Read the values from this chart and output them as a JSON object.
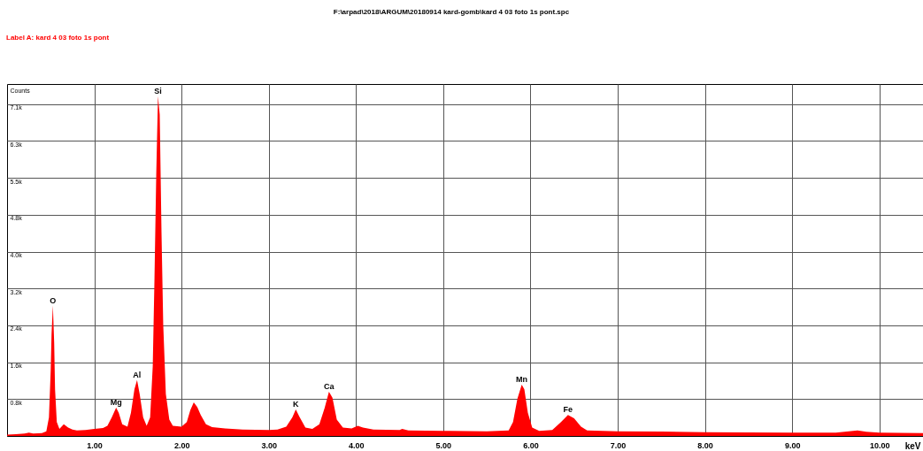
{
  "chart_data": {
    "type": "area",
    "title": "F:\\arpad\\2018\\ARGUM\\20180914 kard-gomb\\kard 4 03 foto 1s pont.spc",
    "subtitle": "Label A: kard 4 03 foto 1s pont",
    "xlabel": "keV",
    "ylabel": "Counts",
    "xlim": [
      0,
      10.5
    ],
    "xticks": [
      {
        "value": 1,
        "label": "1.00"
      },
      {
        "value": 2,
        "label": "2.00"
      },
      {
        "value": 3,
        "label": "3.00"
      },
      {
        "value": 4,
        "label": "4.00"
      },
      {
        "value": 5,
        "label": "5.00"
      },
      {
        "value": 6,
        "label": "6.00"
      },
      {
        "value": 7,
        "label": "7.00"
      },
      {
        "value": 8,
        "label": "8.00"
      },
      {
        "value": 9,
        "label": "9.00"
      },
      {
        "value": 10,
        "label": "10.00"
      }
    ],
    "ylim": [
      0,
      7560
    ],
    "yticks": [
      {
        "value": 792,
        "label": "0.8k"
      },
      {
        "value": 1584,
        "label": "1.6k"
      },
      {
        "value": 2376,
        "label": "2.4k"
      },
      {
        "value": 3168,
        "label": "3.2k"
      },
      {
        "value": 3960,
        "label": "4.0k"
      },
      {
        "value": 4752,
        "label": "4.8k"
      },
      {
        "value": 5544,
        "label": "5.5k"
      },
      {
        "value": 6336,
        "label": "6.3k"
      },
      {
        "value": 7128,
        "label": "7.1k"
      }
    ],
    "grid": true,
    "x": [
      0.0,
      0.1,
      0.2,
      0.25,
      0.3,
      0.4,
      0.45,
      0.48,
      0.5,
      0.51,
      0.525,
      0.54,
      0.55,
      0.57,
      0.6,
      0.65,
      0.7,
      0.75,
      0.8,
      0.9,
      1.0,
      1.1,
      1.15,
      1.2,
      1.25,
      1.28,
      1.32,
      1.38,
      1.42,
      1.46,
      1.49,
      1.52,
      1.56,
      1.6,
      1.64,
      1.67,
      1.69,
      1.71,
      1.73,
      1.75,
      1.77,
      1.79,
      1.82,
      1.86,
      1.9,
      2.0,
      2.06,
      2.1,
      2.14,
      2.18,
      2.22,
      2.28,
      2.35,
      2.5,
      2.7,
      3.0,
      3.1,
      3.2,
      3.27,
      3.31,
      3.35,
      3.42,
      3.5,
      3.58,
      3.64,
      3.69,
      3.73,
      3.78,
      3.85,
      3.95,
      4.02,
      4.08,
      4.2,
      4.5,
      4.53,
      4.6,
      5.0,
      5.5,
      5.75,
      5.8,
      5.85,
      5.9,
      5.93,
      5.97,
      6.02,
      6.1,
      6.25,
      6.35,
      6.43,
      6.5,
      6.58,
      6.65,
      7.0,
      7.5,
      8.0,
      8.5,
      9.0,
      9.5,
      9.65,
      9.75,
      9.85,
      10.0,
      10.5
    ],
    "series": [
      {
        "color": "#ff0000",
        "values": [
          30,
          40,
          50,
          70,
          50,
          60,
          100,
          400,
          1400,
          2200,
          2800,
          2000,
          1000,
          300,
          150,
          250,
          180,
          140,
          120,
          130,
          150,
          170,
          220,
          400,
          610,
          500,
          250,
          200,
          500,
          1000,
          1200,
          900,
          400,
          220,
          400,
          1500,
          3400,
          5600,
          7300,
          6900,
          4400,
          2400,
          900,
          350,
          220,
          200,
          300,
          550,
          720,
          620,
          450,
          250,
          190,
          160,
          140,
          130,
          140,
          200,
          400,
          570,
          420,
          180,
          150,
          250,
          600,
          950,
          820,
          350,
          180,
          160,
          220,
          180,
          140,
          130,
          150,
          120,
          110,
          100,
          120,
          300,
          800,
          1100,
          1000,
          500,
          180,
          110,
          130,
          300,
          450,
          380,
          200,
          120,
          100,
          95,
          80,
          75,
          70,
          70,
          100,
          120,
          90,
          70,
          60
        ]
      }
    ],
    "annotations": [
      {
        "text": "O",
        "x": 0.525,
        "y": 2800
      },
      {
        "text": "Mg",
        "x": 1.25,
        "y": 610
      },
      {
        "text": "Al",
        "x": 1.49,
        "y": 1200
      },
      {
        "text": "Si",
        "x": 1.73,
        "y": 7300
      },
      {
        "text": "K",
        "x": 3.31,
        "y": 570
      },
      {
        "text": "Ca",
        "x": 3.69,
        "y": 950
      },
      {
        "text": "Mn",
        "x": 5.9,
        "y": 1100
      },
      {
        "text": "Fe",
        "x": 6.43,
        "y": 450
      }
    ]
  }
}
